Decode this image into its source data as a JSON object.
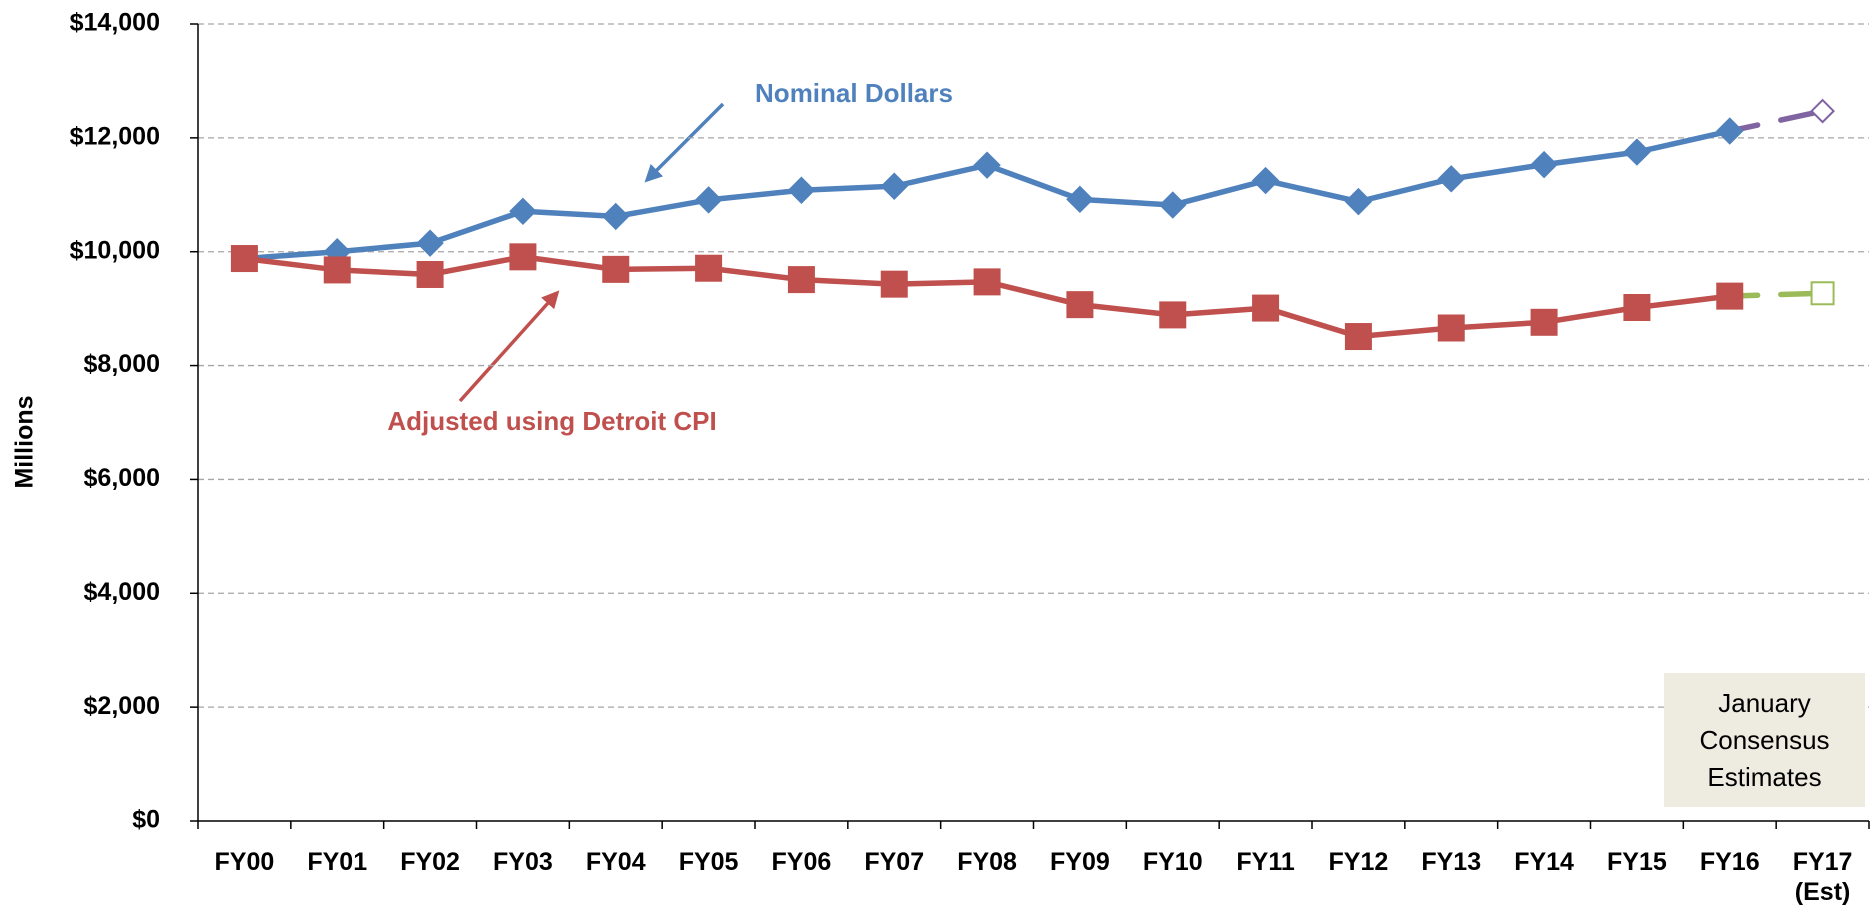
{
  "chart_data": {
    "type": "line",
    "y_label": "Millions",
    "categories": [
      "FY00",
      "FY01",
      "FY02",
      "FY03",
      "FY04",
      "FY05",
      "FY06",
      "FY07",
      "FY08",
      "FY09",
      "FY10",
      "FY11",
      "FY12",
      "FY13",
      "FY14",
      "FY15",
      "FY16",
      "FY17 (Est)"
    ],
    "series": [
      {
        "name": "Nominal Dollars",
        "color": "#4f81bd",
        "estimate_color": "#8064a2",
        "marker": "diamond",
        "values": [
          9880,
          10000,
          10150,
          10710,
          10620,
          10910,
          11080,
          11150,
          11520,
          10920,
          10820,
          11250,
          10880,
          11280,
          11530,
          11750,
          12120,
          12470
        ]
      },
      {
        "name": "Adjusted using Detroit CPI",
        "color": "#c0504d",
        "estimate_color": "#9bbb59",
        "marker": "square",
        "values": [
          9880,
          9680,
          9600,
          9910,
          9690,
          9710,
          9510,
          9430,
          9470,
          9070,
          8890,
          9010,
          8510,
          8660,
          8760,
          9020,
          9220,
          9270
        ]
      }
    ],
    "ylim": [
      0,
      14000
    ],
    "yticks": [
      {
        "value": 0,
        "label": "$0"
      },
      {
        "value": 2000,
        "label": "$2,000"
      },
      {
        "value": 4000,
        "label": "$4,000"
      },
      {
        "value": 6000,
        "label": "$6,000"
      },
      {
        "value": 8000,
        "label": "$8,000"
      },
      {
        "value": 10000,
        "label": "$10,000"
      },
      {
        "value": 12000,
        "label": "$12,000"
      },
      {
        "value": 14000,
        "label": "$14,000"
      }
    ],
    "grid": true,
    "estimate_note": "January Consensus Estimates"
  }
}
